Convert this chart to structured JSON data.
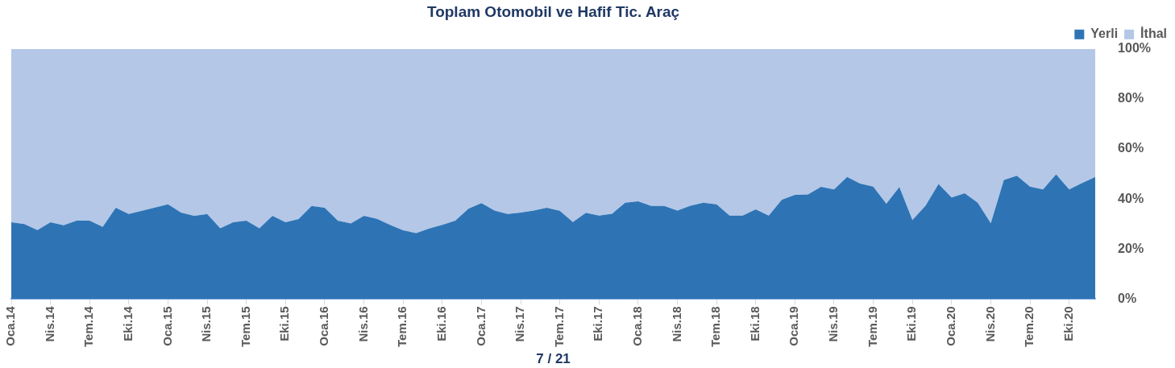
{
  "chart_data": {
    "type": "area",
    "title": "Toplam Otomobil ve Hafif Tic. Araç",
    "categories": [
      "Oca.14",
      null,
      null,
      "Nis.14",
      null,
      null,
      "Tem.14",
      null,
      null,
      "Eki.14",
      null,
      null,
      "Oca.15",
      null,
      null,
      "Nis.15",
      null,
      null,
      "Tem.15",
      null,
      null,
      "Eki.15",
      null,
      null,
      "Oca.16",
      null,
      null,
      "Nis.16",
      null,
      null,
      "Tem.16",
      null,
      null,
      "Eki.16",
      null,
      null,
      "Oca.17",
      null,
      null,
      "Nis.17",
      null,
      null,
      "Tem.17",
      null,
      null,
      "Eki.17",
      null,
      null,
      "Oca.18",
      null,
      null,
      "Nis.18",
      null,
      null,
      "Tem.18",
      null,
      null,
      "Eki.18",
      null,
      null,
      "Oca.19",
      null,
      null,
      "Nis.19",
      null,
      null,
      "Tem.19",
      null,
      null,
      "Eki.19",
      null,
      null,
      "Oca.20",
      null,
      null,
      "Nis.20",
      null,
      null,
      "Tem.20",
      null,
      null,
      "Eki.20",
      null,
      null
    ],
    "series": [
      {
        "name": "Yerli",
        "color": "#2e74b5",
        "values": [
          30.7,
          30.0,
          27.6,
          30.7,
          29.5,
          31.4,
          31.4,
          28.9,
          36.5,
          34.0,
          35.3,
          36.6,
          37.9,
          34.6,
          33.3,
          34.0,
          28.3,
          30.7,
          31.4,
          28.3,
          33.3,
          30.7,
          32.0,
          37.2,
          36.5,
          31.4,
          30.2,
          33.3,
          32.1,
          29.7,
          27.5,
          26.4,
          28.2,
          29.7,
          31.4,
          36.1,
          38.4,
          35.4,
          34.0,
          34.6,
          35.4,
          36.5,
          35.3,
          30.8,
          34.5,
          33.4,
          34.1,
          38.5,
          39.1,
          37.2,
          37.2,
          35.4,
          37.3,
          38.5,
          37.9,
          33.4,
          33.4,
          35.9,
          33.4,
          39.7,
          41.7,
          41.8,
          44.9,
          43.8,
          48.8,
          46.2,
          45.0,
          38.1,
          44.8,
          31.6,
          37.3,
          46.0,
          40.6,
          42.3,
          38.5,
          30.3,
          47.6,
          49.3,
          45.0,
          43.8,
          49.9,
          43.8,
          46.4,
          48.8
        ]
      },
      {
        "name": "İthal",
        "color": "#b4c7e7",
        "values": [
          69.3,
          70.0,
          72.4,
          69.3,
          70.5,
          68.6,
          68.6,
          71.1,
          63.5,
          66.0,
          64.7,
          63.4,
          62.1,
          65.4,
          66.7,
          66.0,
          71.7,
          69.3,
          68.6,
          71.7,
          66.7,
          69.3,
          68.0,
          62.8,
          63.5,
          68.6,
          69.8,
          66.7,
          67.9,
          70.3,
          72.5,
          73.6,
          71.8,
          70.3,
          68.6,
          63.9,
          61.6,
          64.6,
          66.0,
          65.4,
          64.6,
          63.5,
          64.7,
          69.2,
          65.5,
          66.6,
          65.9,
          61.5,
          60.9,
          62.8,
          62.8,
          64.6,
          62.7,
          61.5,
          62.1,
          66.6,
          66.6,
          64.1,
          66.6,
          60.3,
          58.3,
          58.2,
          55.1,
          56.2,
          51.2,
          53.8,
          55.0,
          61.9,
          55.2,
          68.4,
          62.7,
          54.0,
          59.4,
          57.7,
          61.5,
          69.7,
          52.4,
          50.7,
          55.0,
          56.2,
          50.1,
          56.2,
          53.6,
          51.2
        ]
      }
    ],
    "stacked": true,
    "ylim": [
      0,
      100
    ],
    "yticks": [
      {
        "value": 0,
        "label": "0%"
      },
      {
        "value": 20,
        "label": "20%"
      },
      {
        "value": 40,
        "label": "40%"
      },
      {
        "value": 60,
        "label": "60%"
      },
      {
        "value": 80,
        "label": "80%"
      },
      {
        "value": 100,
        "label": "100%"
      }
    ],
    "grid": false,
    "legend": "top right",
    "annotations": [
      "7 / 21"
    ]
  }
}
